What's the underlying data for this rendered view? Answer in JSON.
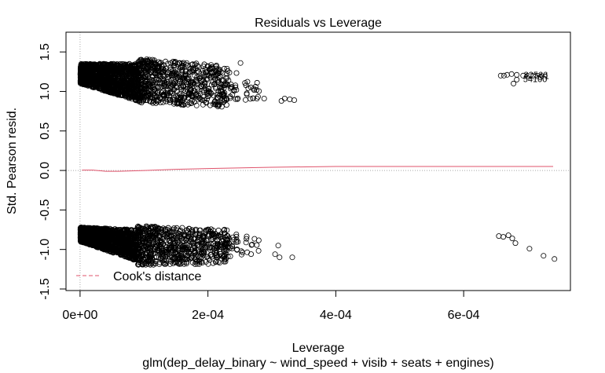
{
  "chart_data": {
    "type": "scatter",
    "title": "Residuals vs Leverage",
    "xlabel": "Leverage",
    "subtitle": "glm(dep_delay_binary ~ wind_speed + visib + seats + engines)",
    "ylabel": "Std. Pearson resid.",
    "xlim": [
      -2.2e-05,
      0.000767
    ],
    "ylim": [
      -1.52,
      1.75
    ],
    "x_ticks": [
      {
        "value": 0,
        "label": "0e+00"
      },
      {
        "value": 0.0002,
        "label": "2e-04"
      },
      {
        "value": 0.0004,
        "label": "4e-04"
      },
      {
        "value": 0.0006,
        "label": "6e-04"
      }
    ],
    "y_ticks": [
      {
        "value": -1.5,
        "label": "-1.5"
      },
      {
        "value": -1.0,
        "label": "-1.0"
      },
      {
        "value": -0.5,
        "label": "-0.5"
      },
      {
        "value": 0.0,
        "label": "0.0"
      },
      {
        "value": 0.5,
        "label": "0.5"
      },
      {
        "value": 1.0,
        "label": "1.0"
      },
      {
        "value": 1.5,
        "label": "1.5"
      }
    ],
    "reference_lines": {
      "h": 0,
      "v": 0
    },
    "smoother": {
      "x": [
        3e-06,
        2e-05,
        4e-05,
        6e-05,
        8e-05,
        0.0001,
        0.00015,
        0.0002,
        0.0003,
        0.0004,
        0.0005,
        0.0006,
        0.00074
      ],
      "y": [
        0.005,
        0.005,
        -0.01,
        -0.01,
        -0.005,
        0.0,
        0.015,
        0.025,
        0.04,
        0.05,
        0.05,
        0.05,
        0.05
      ]
    },
    "point_clusters": [
      {
        "name": "upper-dense",
        "x_range": [
          5e-07,
          9e-05
        ],
        "y_at_start": [
          1.1,
          1.35
        ],
        "y_at_end": [
          0.88,
          1.35
        ],
        "count": 1400
      },
      {
        "name": "upper-mid",
        "x_range": [
          9e-05,
          0.00023
        ],
        "y_at_start": [
          0.86,
          1.42
        ],
        "y_at_end": [
          0.8,
          1.32
        ],
        "count": 700
      },
      {
        "name": "upper-sparse",
        "x_range": [
          0.00023,
          0.00028
        ],
        "y_at_start": [
          0.88,
          1.3
        ],
        "y_at_end": [
          0.9,
          1.1
        ],
        "count": 40
      },
      {
        "name": "lower-dense",
        "x_range": [
          5e-07,
          9e-05
        ],
        "y_at_start": [
          -0.9,
          -0.72
        ],
        "y_at_end": [
          -1.15,
          -0.75
        ],
        "count": 1400
      },
      {
        "name": "lower-mid",
        "x_range": [
          9e-05,
          0.00023
        ],
        "y_at_start": [
          -1.2,
          -0.7
        ],
        "y_at_end": [
          -1.18,
          -0.75
        ],
        "count": 700
      },
      {
        "name": "lower-sparse",
        "x_range": [
          0.00023,
          0.00028
        ],
        "y_at_start": [
          -1.1,
          -0.8
        ],
        "y_at_end": [
          -1.05,
          -0.82
        ],
        "count": 40
      }
    ],
    "points": [
      {
        "x": 0.000251,
        "y": 1.36
      },
      {
        "x": 0.000241,
        "y": 1.02
      },
      {
        "x": 0.000288,
        "y": 0.91
      },
      {
        "x": 0.000315,
        "y": 0.88
      },
      {
        "x": 0.00032,
        "y": 0.91
      },
      {
        "x": 0.000328,
        "y": 0.9
      },
      {
        "x": 0.000335,
        "y": 0.89
      },
      {
        "x": 0.00031,
        "y": -0.95
      },
      {
        "x": 0.000305,
        "y": -1.06
      },
      {
        "x": 0.000332,
        "y": -1.1
      },
      {
        "x": 0.000312,
        "y": -1.1
      },
      {
        "x": 0.000658,
        "y": 1.2
      },
      {
        "x": 0.000663,
        "y": 1.2
      },
      {
        "x": 0.000668,
        "y": 1.21
      },
      {
        "x": 0.000675,
        "y": 1.22
      },
      {
        "x": 0.000683,
        "y": 1.21
      },
      {
        "x": 0.000678,
        "y": 1.1
      },
      {
        "x": 0.000683,
        "y": 1.15
      },
      {
        "x": 0.000693,
        "y": 1.2
      },
      {
        "x": 0.00072,
        "y": 1.18
      },
      {
        "x": 0.000655,
        "y": -0.83
      },
      {
        "x": 0.000662,
        "y": -0.84
      },
      {
        "x": 0.00067,
        "y": -0.82
      },
      {
        "x": 0.000676,
        "y": -0.86
      },
      {
        "x": 0.000681,
        "y": -0.92
      },
      {
        "x": 0.000703,
        "y": -0.99
      },
      {
        "x": 0.000725,
        "y": -1.08
      },
      {
        "x": 0.000742,
        "y": -1.12
      }
    ],
    "point_labels": [
      {
        "text": "82566",
        "x": 0.000694,
        "y": 1.215
      },
      {
        "text": "82501",
        "x": 0.000696,
        "y": 1.2
      },
      {
        "text": "54100",
        "x": 0.000693,
        "y": 1.16
      }
    ],
    "legend": {
      "position": "bottom-left",
      "entries": [
        {
          "label": "Cook's distance",
          "style": "dashed",
          "color": "#DF536B"
        }
      ]
    },
    "colors": {
      "points": "#000000",
      "smoother": "#DF536B",
      "reference": "#A8A8A8",
      "axes": "#000000"
    }
  }
}
